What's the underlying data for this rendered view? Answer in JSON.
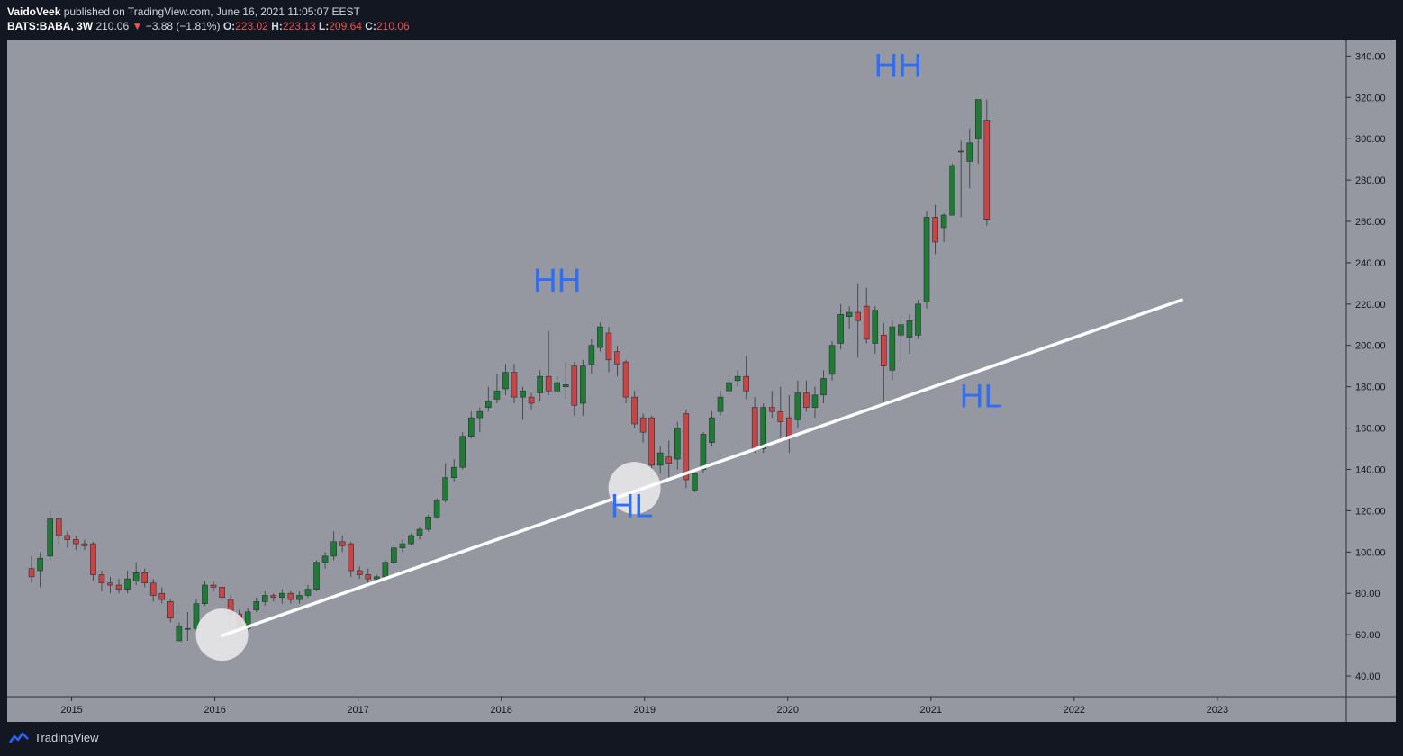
{
  "header": {
    "author": "VaidoVeek",
    "published_text": " published on TradingView.com, June 16, 2021 11:05:07 EEST",
    "symbol": "BATS:BABA, 3W",
    "last": "210.06",
    "change_arrow": "▼",
    "change": "−3.88 (−1.81%)",
    "o_label": "O:",
    "o_value": "223.02",
    "h_label": "H:",
    "h_value": "223.13",
    "l_label": "L:",
    "l_value": "209.64",
    "c_label": "C:",
    "c_value": "210.06"
  },
  "footer": {
    "brand": "TradingView"
  },
  "colors": {
    "background": "#131722",
    "plot_bg": "#9598a1",
    "up": "#1e7b34",
    "down": "#c94444",
    "wick": "#474a52",
    "annotation_text": "#2f6ef5",
    "trendline": "#ffffff",
    "circle": "#e8e8ea"
  },
  "chart_data": {
    "type": "candlestick",
    "interval": "3W",
    "y_axis": {
      "min": 30,
      "max": 348,
      "ticks": [
        "40.00",
        "60.00",
        "80.00",
        "100.00",
        "120.00",
        "140.00",
        "160.00",
        "180.00",
        "200.00",
        "220.00",
        "240.00",
        "260.00",
        "280.00",
        "300.00",
        "320.00",
        "340.00"
      ],
      "position": "right"
    },
    "x_axis": {
      "min": 2014.55,
      "max": 2023.9,
      "ticks": [
        "2015",
        "2016",
        "2017",
        "2018",
        "2019",
        "2020",
        "2021",
        "2022",
        "2023"
      ]
    },
    "candles": [
      {
        "t": 2014.72,
        "o": 92,
        "h": 98,
        "l": 85,
        "c": 88
      },
      {
        "t": 2014.78,
        "o": 91,
        "h": 100,
        "l": 83,
        "c": 97
      },
      {
        "t": 2014.85,
        "o": 98,
        "h": 120,
        "l": 96,
        "c": 116
      },
      {
        "t": 2014.91,
        "o": 116,
        "h": 117,
        "l": 104,
        "c": 108
      },
      {
        "t": 2014.97,
        "o": 108,
        "h": 110,
        "l": 102,
        "c": 106
      },
      {
        "t": 2015.03,
        "o": 106,
        "h": 108,
        "l": 101,
        "c": 104
      },
      {
        "t": 2015.09,
        "o": 104,
        "h": 106,
        "l": 101,
        "c": 103
      },
      {
        "t": 2015.15,
        "o": 104,
        "h": 105,
        "l": 86,
        "c": 89
      },
      {
        "t": 2015.21,
        "o": 89,
        "h": 91,
        "l": 81,
        "c": 85
      },
      {
        "t": 2015.27,
        "o": 85,
        "h": 88,
        "l": 80,
        "c": 84
      },
      {
        "t": 2015.33,
        "o": 84,
        "h": 87,
        "l": 80,
        "c": 82
      },
      {
        "t": 2015.39,
        "o": 82,
        "h": 91,
        "l": 80,
        "c": 87
      },
      {
        "t": 2015.45,
        "o": 86,
        "h": 95,
        "l": 84,
        "c": 90
      },
      {
        "t": 2015.51,
        "o": 90,
        "h": 92,
        "l": 83,
        "c": 85
      },
      {
        "t": 2015.57,
        "o": 85,
        "h": 87,
        "l": 76,
        "c": 79
      },
      {
        "t": 2015.63,
        "o": 80,
        "h": 83,
        "l": 75,
        "c": 77
      },
      {
        "t": 2015.69,
        "o": 76,
        "h": 77,
        "l": 66,
        "c": 68
      },
      {
        "t": 2015.75,
        "o": 57,
        "h": 66,
        "l": 57,
        "c": 64
      },
      {
        "t": 2015.81,
        "o": 63,
        "h": 71,
        "l": 57,
        "c": 63
      },
      {
        "t": 2015.87,
        "o": 63,
        "h": 77,
        "l": 62,
        "c": 75
      },
      {
        "t": 2015.93,
        "o": 75,
        "h": 86,
        "l": 74,
        "c": 84
      },
      {
        "t": 2015.99,
        "o": 84,
        "h": 86,
        "l": 81,
        "c": 83
      },
      {
        "t": 2016.05,
        "o": 83,
        "h": 85,
        "l": 76,
        "c": 78
      },
      {
        "t": 2016.11,
        "o": 77,
        "h": 79,
        "l": 65,
        "c": 70
      },
      {
        "t": 2016.17,
        "o": 70,
        "h": 72,
        "l": 59,
        "c": 62
      },
      {
        "t": 2016.23,
        "o": 63,
        "h": 73,
        "l": 62,
        "c": 71
      },
      {
        "t": 2016.29,
        "o": 72,
        "h": 78,
        "l": 71,
        "c": 76
      },
      {
        "t": 2016.35,
        "o": 76,
        "h": 81,
        "l": 74,
        "c": 79
      },
      {
        "t": 2016.41,
        "o": 79,
        "h": 80,
        "l": 76,
        "c": 78
      },
      {
        "t": 2016.47,
        "o": 78,
        "h": 82,
        "l": 75,
        "c": 80
      },
      {
        "t": 2016.53,
        "o": 80,
        "h": 81,
        "l": 75,
        "c": 77
      },
      {
        "t": 2016.59,
        "o": 77,
        "h": 81,
        "l": 75,
        "c": 79
      },
      {
        "t": 2016.65,
        "o": 79,
        "h": 84,
        "l": 78,
        "c": 82
      },
      {
        "t": 2016.71,
        "o": 82,
        "h": 96,
        "l": 81,
        "c": 95
      },
      {
        "t": 2016.77,
        "o": 95,
        "h": 100,
        "l": 92,
        "c": 98
      },
      {
        "t": 2016.83,
        "o": 98,
        "h": 110,
        "l": 96,
        "c": 105
      },
      {
        "t": 2016.89,
        "o": 105,
        "h": 108,
        "l": 100,
        "c": 103
      },
      {
        "t": 2016.95,
        "o": 104,
        "h": 105,
        "l": 88,
        "c": 91
      },
      {
        "t": 2017.01,
        "o": 91,
        "h": 93,
        "l": 87,
        "c": 89
      },
      {
        "t": 2017.07,
        "o": 89,
        "h": 92,
        "l": 85,
        "c": 87
      },
      {
        "t": 2017.13,
        "o": 87,
        "h": 89,
        "l": 86,
        "c": 88
      },
      {
        "t": 2017.19,
        "o": 88,
        "h": 96,
        "l": 87,
        "c": 95
      },
      {
        "t": 2017.25,
        "o": 95,
        "h": 104,
        "l": 94,
        "c": 102
      },
      {
        "t": 2017.31,
        "o": 102,
        "h": 106,
        "l": 100,
        "c": 104
      },
      {
        "t": 2017.37,
        "o": 104,
        "h": 109,
        "l": 103,
        "c": 108
      },
      {
        "t": 2017.43,
        "o": 108,
        "h": 112,
        "l": 106,
        "c": 111
      },
      {
        "t": 2017.49,
        "o": 111,
        "h": 118,
        "l": 110,
        "c": 117
      },
      {
        "t": 2017.55,
        "o": 117,
        "h": 126,
        "l": 116,
        "c": 125
      },
      {
        "t": 2017.61,
        "o": 125,
        "h": 143,
        "l": 124,
        "c": 136
      },
      {
        "t": 2017.67,
        "o": 136,
        "h": 145,
        "l": 134,
        "c": 141
      },
      {
        "t": 2017.73,
        "o": 141,
        "h": 158,
        "l": 140,
        "c": 156
      },
      {
        "t": 2017.79,
        "o": 156,
        "h": 168,
        "l": 155,
        "c": 165
      },
      {
        "t": 2017.85,
        "o": 165,
        "h": 170,
        "l": 158,
        "c": 168
      },
      {
        "t": 2017.91,
        "o": 170,
        "h": 180,
        "l": 168,
        "c": 173
      },
      {
        "t": 2017.97,
        "o": 174,
        "h": 186,
        "l": 172,
        "c": 178
      },
      {
        "t": 2018.03,
        "o": 179,
        "h": 191,
        "l": 176,
        "c": 187
      },
      {
        "t": 2018.09,
        "o": 187,
        "h": 191,
        "l": 172,
        "c": 175
      },
      {
        "t": 2018.15,
        "o": 175,
        "h": 180,
        "l": 164,
        "c": 178
      },
      {
        "t": 2018.21,
        "o": 175,
        "h": 177,
        "l": 169,
        "c": 172
      },
      {
        "t": 2018.27,
        "o": 177,
        "h": 188,
        "l": 173,
        "c": 185
      },
      {
        "t": 2018.33,
        "o": 185,
        "h": 207,
        "l": 176,
        "c": 178
      },
      {
        "t": 2018.39,
        "o": 178,
        "h": 185,
        "l": 177,
        "c": 182
      },
      {
        "t": 2018.45,
        "o": 180,
        "h": 192,
        "l": 174,
        "c": 181
      },
      {
        "t": 2018.51,
        "o": 190,
        "h": 192,
        "l": 166,
        "c": 171
      },
      {
        "t": 2018.57,
        "o": 172,
        "h": 193,
        "l": 166,
        "c": 190
      },
      {
        "t": 2018.63,
        "o": 191,
        "h": 203,
        "l": 186,
        "c": 200
      },
      {
        "t": 2018.69,
        "o": 199,
        "h": 211,
        "l": 197,
        "c": 209
      },
      {
        "t": 2018.75,
        "o": 206,
        "h": 209,
        "l": 187,
        "c": 193
      },
      {
        "t": 2018.81,
        "o": 197,
        "h": 200,
        "l": 185,
        "c": 191
      },
      {
        "t": 2018.87,
        "o": 192,
        "h": 193,
        "l": 172,
        "c": 175
      },
      {
        "t": 2018.93,
        "o": 175,
        "h": 178,
        "l": 160,
        "c": 162
      },
      {
        "t": 2018.99,
        "o": 165,
        "h": 167,
        "l": 153,
        "c": 158
      },
      {
        "t": 2019.05,
        "o": 165,
        "h": 166,
        "l": 136,
        "c": 142
      },
      {
        "t": 2019.11,
        "o": 142,
        "h": 151,
        "l": 138,
        "c": 148
      },
      {
        "t": 2019.17,
        "o": 146,
        "h": 154,
        "l": 136,
        "c": 143
      },
      {
        "t": 2019.23,
        "o": 145,
        "h": 163,
        "l": 140,
        "c": 160
      },
      {
        "t": 2019.29,
        "o": 167,
        "h": 169,
        "l": 131,
        "c": 135
      },
      {
        "t": 2019.35,
        "o": 130,
        "h": 138,
        "l": 129,
        "c": 138
      },
      {
        "t": 2019.41,
        "o": 140,
        "h": 158,
        "l": 138,
        "c": 157
      },
      {
        "t": 2019.47,
        "o": 153,
        "h": 168,
        "l": 151,
        "c": 165
      },
      {
        "t": 2019.53,
        "o": 168,
        "h": 178,
        "l": 166,
        "c": 175
      },
      {
        "t": 2019.59,
        "o": 178,
        "h": 186,
        "l": 176,
        "c": 182
      },
      {
        "t": 2019.65,
        "o": 183,
        "h": 188,
        "l": 180,
        "c": 185
      },
      {
        "t": 2019.71,
        "o": 185,
        "h": 195,
        "l": 174,
        "c": 178
      },
      {
        "t": 2019.77,
        "o": 170,
        "h": 175,
        "l": 148,
        "c": 150
      },
      {
        "t": 2019.83,
        "o": 150,
        "h": 172,
        "l": 148,
        "c": 170
      },
      {
        "t": 2019.89,
        "o": 170,
        "h": 178,
        "l": 165,
        "c": 168
      },
      {
        "t": 2019.95,
        "o": 168,
        "h": 180,
        "l": 155,
        "c": 163
      },
      {
        "t": 2020.01,
        "o": 165,
        "h": 176,
        "l": 148,
        "c": 156
      },
      {
        "t": 2020.07,
        "o": 164,
        "h": 183,
        "l": 160,
        "c": 177
      },
      {
        "t": 2020.13,
        "o": 177,
        "h": 183,
        "l": 168,
        "c": 170
      },
      {
        "t": 2020.19,
        "o": 170,
        "h": 180,
        "l": 165,
        "c": 176
      },
      {
        "t": 2020.25,
        "o": 176,
        "h": 188,
        "l": 172,
        "c": 184
      },
      {
        "t": 2020.31,
        "o": 186,
        "h": 202,
        "l": 183,
        "c": 200
      },
      {
        "t": 2020.37,
        "o": 201,
        "h": 220,
        "l": 198,
        "c": 215
      },
      {
        "t": 2020.43,
        "o": 214,
        "h": 219,
        "l": 208,
        "c": 216
      },
      {
        "t": 2020.49,
        "o": 216,
        "h": 230,
        "l": 194,
        "c": 212
      },
      {
        "t": 2020.55,
        "o": 219,
        "h": 228,
        "l": 201,
        "c": 203
      },
      {
        "t": 2020.61,
        "o": 201,
        "h": 219,
        "l": 196,
        "c": 217
      },
      {
        "t": 2020.67,
        "o": 205,
        "h": 211,
        "l": 172,
        "c": 190
      },
      {
        "t": 2020.73,
        "o": 188,
        "h": 212,
        "l": 183,
        "c": 209
      },
      {
        "t": 2020.79,
        "o": 205,
        "h": 214,
        "l": 192,
        "c": 210
      },
      {
        "t": 2020.85,
        "o": 204,
        "h": 215,
        "l": 196,
        "c": 212
      },
      {
        "t": 2020.91,
        "o": 205,
        "h": 222,
        "l": 203,
        "c": 220
      },
      {
        "t": 2020.97,
        "o": 221,
        "h": 265,
        "l": 218,
        "c": 262
      },
      {
        "t": 2021.03,
        "o": 262,
        "h": 268,
        "l": 244,
        "c": 250
      },
      {
        "t": 2021.09,
        "o": 257,
        "h": 264,
        "l": 250,
        "c": 263
      },
      {
        "t": 2021.15,
        "o": 263,
        "h": 288,
        "l": 263,
        "c": 287
      },
      {
        "t": 2021.21,
        "o": 294,
        "h": 299,
        "l": 262,
        "c": 294
      },
      {
        "t": 2021.27,
        "o": 289,
        "h": 305,
        "l": 276,
        "c": 298
      },
      {
        "t": 2021.33,
        "o": 300,
        "h": 319,
        "l": 288,
        "c": 319
      },
      {
        "t": 2021.39,
        "o": 309,
        "h": 319,
        "l": 258,
        "c": 261
      }
    ],
    "trendline": {
      "x1": 2016.05,
      "y1": 59.5,
      "x2": 2022.75,
      "y2": 222
    },
    "annotations": [
      {
        "text": "HH",
        "x": 2018.39,
        "y": 226
      },
      {
        "text": "HH",
        "x": 2020.77,
        "y": 330
      },
      {
        "text": "HL",
        "x": 2018.91,
        "y": 117
      },
      {
        "text": "HL",
        "x": 2021.35,
        "y": 170
      }
    ],
    "circles": [
      {
        "x": 2016.05,
        "y": 60
      },
      {
        "x": 2018.93,
        "y": 131
      }
    ]
  }
}
